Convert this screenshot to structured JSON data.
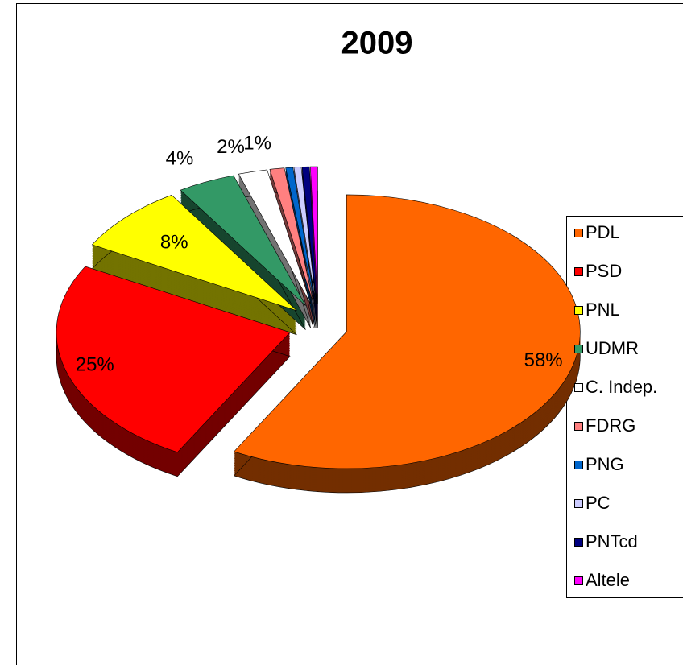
{
  "chart_data": {
    "type": "pie",
    "title": "2009",
    "categories": [
      "PDL",
      "PSD",
      "PNL",
      "UDMR",
      "C. Indep.",
      "FDRG",
      "PNG",
      "PC",
      "PNTcd",
      "Altele"
    ],
    "values": [
      58,
      25,
      8,
      4,
      2,
      1,
      0.5,
      0.5,
      0.5,
      0.5
    ],
    "value_labels": [
      "58%",
      "25%",
      "8%",
      "4%",
      "2%",
      "1%",
      null,
      null,
      null,
      null
    ],
    "colors": [
      "#ff6600",
      "#ff0000",
      "#ffff00",
      "#339966",
      "#ffffff",
      "#ff8080",
      "#0066cc",
      "#ccccff",
      "#000080",
      "#ff00ff"
    ],
    "legend": "right",
    "three_d": true,
    "exploded": true
  }
}
